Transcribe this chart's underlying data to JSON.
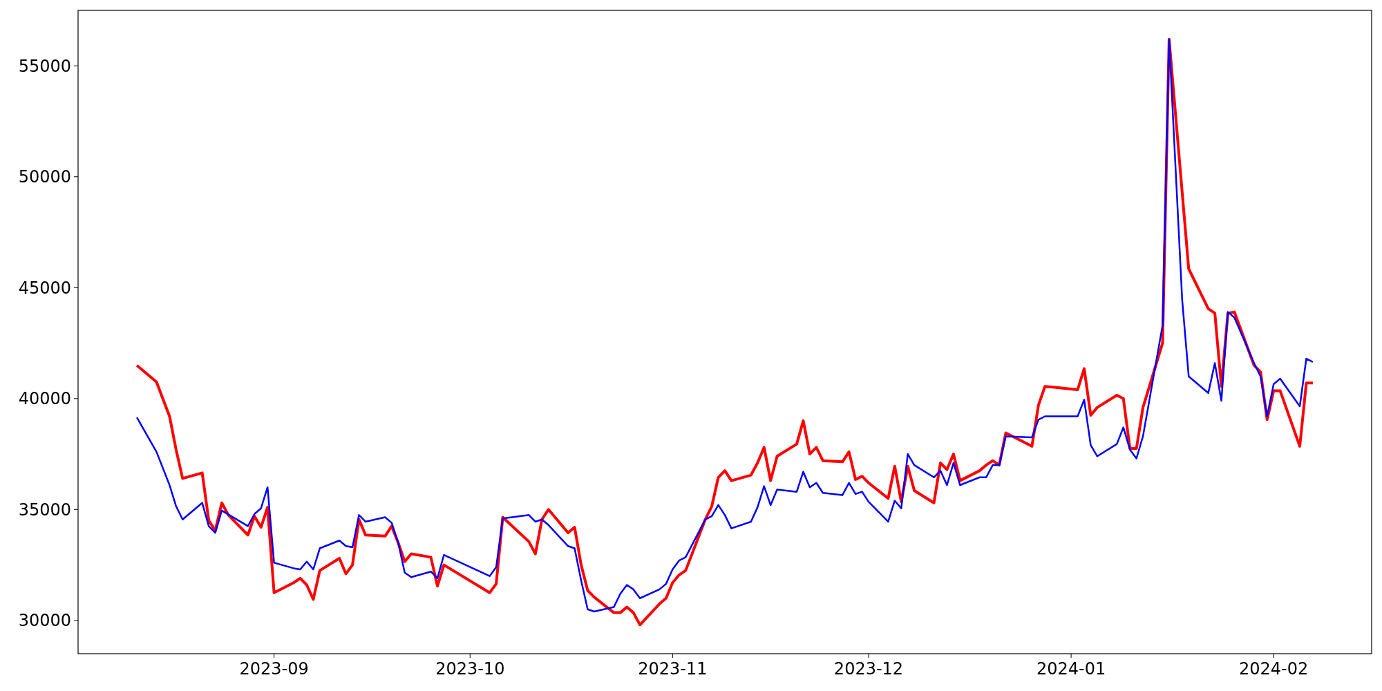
{
  "chart_data": {
    "type": "line",
    "xlim": [
      "2023-08-02",
      "2024-02-16"
    ],
    "ylim": [
      28500,
      57500
    ],
    "xticks": [
      "2023-09",
      "2023-10",
      "2023-11",
      "2023-12",
      "2024-01",
      "2024-02"
    ],
    "yticks": [
      30000,
      35000,
      40000,
      45000,
      50000,
      55000
    ],
    "series": [
      {
        "color": "#ff0000",
        "x": [
          "2023-08-11",
          "2023-08-14",
          "2023-08-16",
          "2023-08-17",
          "2023-08-18",
          "2023-08-21",
          "2023-08-22",
          "2023-08-23",
          "2023-08-24",
          "2023-08-25",
          "2023-08-28",
          "2023-08-29",
          "2023-08-30",
          "2023-08-31",
          "2023-09-01",
          "2023-09-04",
          "2023-09-05",
          "2023-09-06",
          "2023-09-07",
          "2023-09-08",
          "2023-09-11",
          "2023-09-12",
          "2023-09-13",
          "2023-09-14",
          "2023-09-15",
          "2023-09-18",
          "2023-09-19",
          "2023-09-20",
          "2023-09-21",
          "2023-09-22",
          "2023-09-25",
          "2023-09-26",
          "2023-09-27",
          "2023-10-04",
          "2023-10-05",
          "2023-10-06",
          "2023-10-10",
          "2023-10-11",
          "2023-10-12",
          "2023-10-13",
          "2023-10-16",
          "2023-10-17",
          "2023-10-18",
          "2023-10-19",
          "2023-10-20",
          "2023-10-23",
          "2023-10-24",
          "2023-10-25",
          "2023-10-26",
          "2023-10-27",
          "2023-10-30",
          "2023-10-31",
          "2023-11-01",
          "2023-11-02",
          "2023-11-03",
          "2023-11-06",
          "2023-11-07",
          "2023-11-08",
          "2023-11-09",
          "2023-11-10",
          "2023-11-13",
          "2023-11-14",
          "2023-11-15",
          "2023-11-16",
          "2023-11-17",
          "2023-11-20",
          "2023-11-21",
          "2023-11-22",
          "2023-11-23",
          "2023-11-24",
          "2023-11-27",
          "2023-11-28",
          "2023-11-29",
          "2023-11-30",
          "2023-12-01",
          "2023-12-04",
          "2023-12-05",
          "2023-12-06",
          "2023-12-07",
          "2023-12-08",
          "2023-12-11",
          "2023-12-12",
          "2023-12-13",
          "2023-12-14",
          "2023-12-15",
          "2023-12-18",
          "2023-12-19",
          "2023-12-20",
          "2023-12-21",
          "2023-12-22",
          "2023-12-26",
          "2023-12-27",
          "2023-12-28",
          "2024-01-02",
          "2024-01-03",
          "2024-01-04",
          "2024-01-05",
          "2024-01-08",
          "2024-01-09",
          "2024-01-10",
          "2024-01-11",
          "2024-01-12",
          "2024-01-15",
          "2024-01-16",
          "2024-01-19",
          "2024-01-22",
          "2024-01-23",
          "2024-01-24",
          "2024-01-25",
          "2024-01-26",
          "2024-01-29",
          "2024-01-30",
          "2024-01-31",
          "2024-02-01",
          "2024-02-02",
          "2024-02-05",
          "2024-02-06",
          "2024-02-07"
        ],
        "values": [
          41500,
          40750,
          39200,
          37700,
          36400,
          36650,
          34500,
          34050,
          35300,
          34750,
          33850,
          34700,
          34200,
          35100,
          31250,
          31700,
          31900,
          31600,
          30950,
          32250,
          32800,
          32100,
          32500,
          34550,
          33850,
          33800,
          34250,
          33500,
          32650,
          33000,
          32850,
          31550,
          32500,
          31250,
          31650,
          34650,
          33550,
          33000,
          34550,
          35000,
          33950,
          34200,
          32500,
          31350,
          31050,
          30350,
          30350,
          30600,
          30350,
          29800,
          30750,
          31000,
          31700,
          32050,
          32250,
          34550,
          35150,
          36450,
          36750,
          36300,
          36550,
          37100,
          37800,
          36300,
          37400,
          37950,
          39000,
          37500,
          37800,
          37200,
          37150,
          37600,
          36350,
          36500,
          36200,
          35500,
          36950,
          35350,
          36950,
          35850,
          35300,
          37100,
          36800,
          37500,
          36300,
          36750,
          37000,
          37200,
          37000,
          38450,
          37850,
          39700,
          40550,
          40400,
          41350,
          39250,
          39600,
          40150,
          40000,
          37750,
          37750,
          39600,
          42500,
          56200,
          45850,
          44050,
          43850,
          40550,
          43850,
          43900,
          41500,
          41200,
          39050,
          40350,
          40350,
          37850,
          40700,
          40700
        ]
      },
      {
        "color": "#0000ff",
        "x": [
          "2023-08-11",
          "2023-08-14",
          "2023-08-16",
          "2023-08-17",
          "2023-08-18",
          "2023-08-21",
          "2023-08-22",
          "2023-08-23",
          "2023-08-24",
          "2023-08-28",
          "2023-08-29",
          "2023-08-30",
          "2023-08-31",
          "2023-09-01",
          "2023-09-04",
          "2023-09-05",
          "2023-09-06",
          "2023-09-07",
          "2023-09-08",
          "2023-09-11",
          "2023-09-12",
          "2023-09-13",
          "2023-09-14",
          "2023-09-15",
          "2023-09-18",
          "2023-09-19",
          "2023-09-20",
          "2023-09-21",
          "2023-09-22",
          "2023-09-25",
          "2023-09-26",
          "2023-09-27",
          "2023-10-04",
          "2023-10-05",
          "2023-10-06",
          "2023-10-10",
          "2023-10-11",
          "2023-10-12",
          "2023-10-13",
          "2023-10-16",
          "2023-10-17",
          "2023-10-18",
          "2023-10-19",
          "2023-10-20",
          "2023-10-23",
          "2023-10-24",
          "2023-10-25",
          "2023-10-26",
          "2023-10-27",
          "2023-10-30",
          "2023-10-31",
          "2023-11-01",
          "2023-11-02",
          "2023-11-03",
          "2023-11-06",
          "2023-11-07",
          "2023-11-08",
          "2023-11-09",
          "2023-11-10",
          "2023-11-13",
          "2023-11-14",
          "2023-11-15",
          "2023-11-16",
          "2023-11-17",
          "2023-11-20",
          "2023-11-21",
          "2023-11-22",
          "2023-11-23",
          "2023-11-24",
          "2023-11-27",
          "2023-11-28",
          "2023-11-29",
          "2023-11-30",
          "2023-12-01",
          "2023-12-04",
          "2023-12-05",
          "2023-12-06",
          "2023-12-07",
          "2023-12-08",
          "2023-12-11",
          "2023-12-12",
          "2023-12-13",
          "2023-12-14",
          "2023-12-15",
          "2023-12-18",
          "2023-12-19",
          "2023-12-20",
          "2023-12-21",
          "2023-12-22",
          "2023-12-26",
          "2023-12-27",
          "2023-12-28",
          "2024-01-02",
          "2024-01-03",
          "2024-01-04",
          "2024-01-05",
          "2024-01-08",
          "2024-01-09",
          "2024-01-10",
          "2024-01-11",
          "2024-01-12",
          "2024-01-15",
          "2024-01-16",
          "2024-01-18",
          "2024-01-19",
          "2024-01-22",
          "2024-01-23",
          "2024-01-24",
          "2024-01-25",
          "2024-01-26",
          "2024-01-29",
          "2024-01-30",
          "2024-01-31",
          "2024-02-01",
          "2024-02-02",
          "2024-02-05",
          "2024-02-06",
          "2024-02-07"
        ],
        "values": [
          39150,
          37600,
          36100,
          35150,
          34550,
          35300,
          34250,
          33950,
          34950,
          34250,
          34800,
          35050,
          36000,
          32600,
          32350,
          32300,
          32650,
          32300,
          33250,
          33600,
          33350,
          33300,
          34750,
          34450,
          34650,
          34400,
          33500,
          32150,
          31950,
          32200,
          31900,
          32950,
          32000,
          32400,
          34600,
          34750,
          34450,
          34550,
          34300,
          33350,
          33250,
          31800,
          30500,
          30400,
          30600,
          31200,
          31600,
          31400,
          31000,
          31400,
          31650,
          32300,
          32700,
          32850,
          34550,
          34700,
          35200,
          34750,
          34150,
          34450,
          35100,
          36050,
          35200,
          35900,
          35800,
          36700,
          36000,
          36200,
          35750,
          35650,
          36200,
          35700,
          35800,
          35350,
          34450,
          35400,
          35050,
          37500,
          37000,
          36450,
          36750,
          36100,
          37100,
          36100,
          36450,
          36450,
          37000,
          37000,
          38300,
          38250,
          39050,
          39200,
          39200,
          39950,
          37900,
          37400,
          37950,
          38700,
          37700,
          37300,
          38300,
          43300,
          56200,
          44450,
          41000,
          40250,
          41600,
          39900,
          43900,
          43650,
          41600,
          41000,
          39200,
          40650,
          40900,
          39650,
          41800,
          41650
        ]
      }
    ]
  }
}
